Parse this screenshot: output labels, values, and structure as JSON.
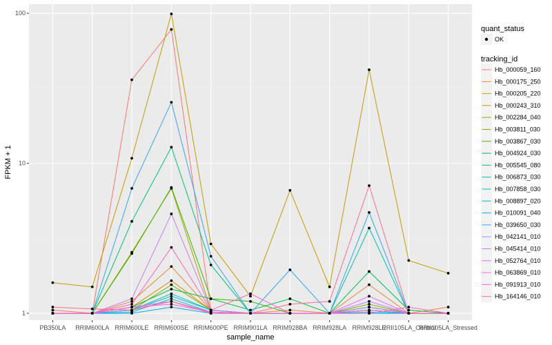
{
  "chart_data": {
    "type": "line",
    "xlabel": "sample_name",
    "ylabel": "FPKM + 1",
    "y_scale": "log10",
    "ylim": [
      0.9,
      115
    ],
    "y_ticks": [
      {
        "value": 1,
        "label": "1"
      },
      {
        "value": 10,
        "label": "10"
      },
      {
        "value": 100,
        "label": "100"
      }
    ],
    "categories": [
      "PB350LA",
      "RRIM600LA",
      "RRIM600LE",
      "RRIM600SE",
      "RRIM600PE",
      "RRIM901LA",
      "RRIM928BA",
      "RRIM928LA",
      "RRIM928LE",
      "RRII105LA_Control",
      "RRII105LA_Stressed"
    ],
    "grid": true,
    "legend_position": "right",
    "point_legend": {
      "title": "quant_status",
      "entries": [
        "OK"
      ]
    },
    "series_legend_title": "tracking_id",
    "series": [
      {
        "name": "Hb_000059_160",
        "color": "#F8766D",
        "values": [
          1.05,
          1.0,
          36.0,
          78.0,
          1.05,
          1.0,
          1.0,
          1.0,
          1.05,
          1.0,
          1.0
        ]
      },
      {
        "name": "Hb_000175_250",
        "color": "#EA8331",
        "values": [
          1.0,
          1.0,
          1.2,
          2.05,
          1.05,
          1.0,
          1.05,
          1.0,
          1.55,
          1.0,
          1.1
        ]
      },
      {
        "name": "Hb_000205_220",
        "color": "#C49A00",
        "values": [
          1.6,
          1.5,
          10.8,
          99.0,
          2.9,
          1.3,
          6.6,
          1.5,
          42.0,
          2.25,
          1.85
        ]
      },
      {
        "name": "Hb_000243_310",
        "color": "#D89000",
        "values": [
          1.0,
          1.0,
          1.1,
          1.65,
          1.05,
          1.0,
          1.0,
          1.0,
          1.1,
          1.0,
          1.0
        ]
      },
      {
        "name": "Hb_002284_040",
        "color": "#A3A500",
        "values": [
          1.0,
          1.0,
          2.55,
          6.8,
          1.05,
          1.0,
          1.0,
          1.0,
          1.05,
          1.0,
          1.0
        ]
      },
      {
        "name": "Hb_003811_030",
        "color": "#7CAE00",
        "values": [
          1.0,
          1.0,
          1.05,
          1.55,
          1.05,
          1.0,
          1.0,
          1.0,
          1.15,
          1.0,
          1.0
        ]
      },
      {
        "name": "Hb_003867_030",
        "color": "#39B600",
        "values": [
          1.0,
          1.0,
          2.5,
          6.9,
          1.25,
          1.2,
          1.0,
          1.0,
          1.1,
          1.0,
          1.0
        ]
      },
      {
        "name": "Hb_004924_030",
        "color": "#00BB4E",
        "values": [
          1.0,
          1.0,
          1.1,
          1.45,
          1.25,
          1.05,
          1.25,
          1.0,
          1.9,
          1.05,
          1.0
        ]
      },
      {
        "name": "Hb_005545_080",
        "color": "#00BF7D",
        "values": [
          1.0,
          1.0,
          4.1,
          12.8,
          2.1,
          1.0,
          1.0,
          1.0,
          1.05,
          1.0,
          1.0
        ]
      },
      {
        "name": "Hb_006873_030",
        "color": "#00C1A3",
        "values": [
          1.0,
          1.0,
          1.05,
          1.35,
          1.05,
          1.0,
          1.0,
          1.0,
          3.7,
          1.0,
          1.0
        ]
      },
      {
        "name": "Hb_007858_030",
        "color": "#00BFC4",
        "values": [
          1.0,
          1.0,
          1.02,
          1.25,
          1.02,
          1.0,
          1.0,
          1.0,
          1.02,
          1.0,
          1.0
        ]
      },
      {
        "name": "Hb_008897_020",
        "color": "#00B8E7",
        "values": [
          1.0,
          1.0,
          1.05,
          1.3,
          1.05,
          1.0,
          1.0,
          1.0,
          1.05,
          1.0,
          1.0
        ]
      },
      {
        "name": "Hb_010091_040",
        "color": "#00A9FF",
        "values": [
          1.0,
          1.0,
          1.0,
          1.1,
          1.0,
          1.0,
          1.0,
          1.0,
          1.0,
          1.0,
          1.0
        ]
      },
      {
        "name": "Hb_039650_030",
        "color": "#35A2FF",
        "values": [
          1.0,
          1.0,
          6.8,
          25.5,
          2.4,
          1.0,
          1.95,
          1.0,
          4.7,
          1.0,
          1.0
        ]
      },
      {
        "name": "Hb_042141_010",
        "color": "#9590FF",
        "values": [
          1.0,
          1.0,
          1.05,
          1.2,
          1.0,
          1.0,
          1.0,
          1.0,
          1.1,
          1.0,
          1.0
        ]
      },
      {
        "name": "Hb_045414_010",
        "color": "#C77CFF",
        "values": [
          1.0,
          1.0,
          1.25,
          4.6,
          1.05,
          1.0,
          1.0,
          1.0,
          1.2,
          1.0,
          1.0
        ]
      },
      {
        "name": "Hb_052764_010",
        "color": "#E76BF3",
        "values": [
          1.0,
          1.0,
          1.1,
          1.2,
          1.02,
          1.0,
          1.0,
          1.0,
          1.3,
          1.0,
          1.0
        ]
      },
      {
        "name": "Hb_063869_010",
        "color": "#FA62DB",
        "values": [
          1.0,
          1.0,
          1.1,
          1.15,
          1.02,
          1.0,
          1.0,
          1.0,
          1.05,
          1.0,
          1.0
        ]
      },
      {
        "name": "Hb_091913_010",
        "color": "#FF62BC",
        "values": [
          1.0,
          1.0,
          1.15,
          2.75,
          1.05,
          1.35,
          1.0,
          1.0,
          1.0,
          1.1,
          1.0
        ]
      },
      {
        "name": "Hb_164146_010",
        "color": "#FF6C91",
        "values": [
          1.1,
          1.07,
          1.05,
          1.2,
          1.0,
          1.0,
          1.15,
          1.2,
          7.1,
          1.0,
          1.0
        ]
      }
    ]
  }
}
